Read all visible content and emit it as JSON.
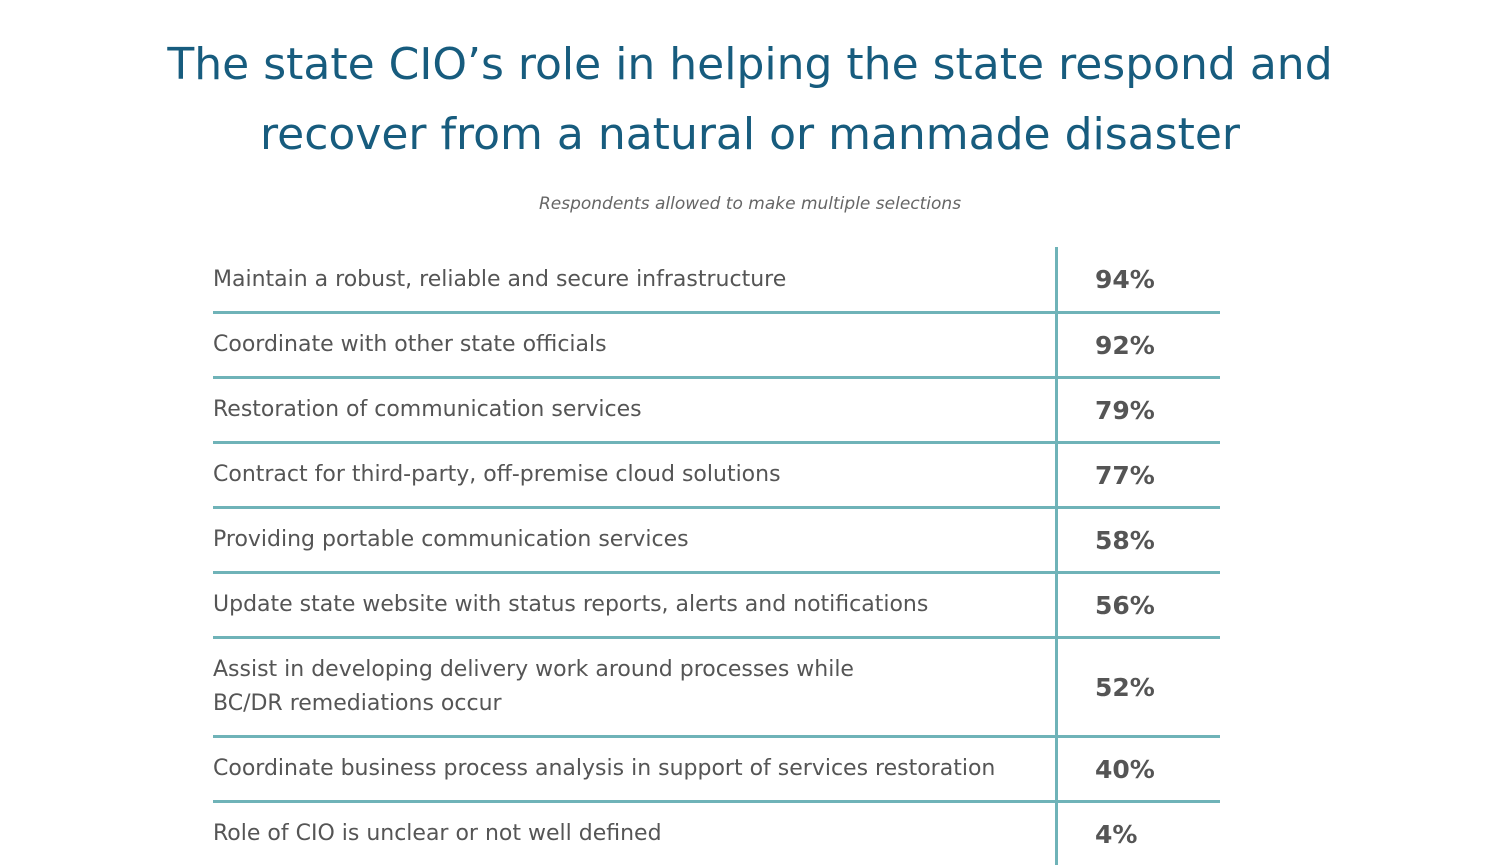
{
  "header": {
    "title": "The state CIO’s role in helping the state respond and recover from a natural or manmade disaster",
    "subtitle": "Respondents allowed to make multiple selections"
  },
  "table": {
    "rows": [
      [
        "Maintain a robust, reliable and secure infrastructure",
        "94%"
      ],
      [
        "Coordinate with other state officials",
        "92%"
      ],
      [
        "Restoration of communication services",
        "79%"
      ],
      [
        "Contract for third-party, off-premise cloud solutions",
        "77%"
      ],
      [
        "Providing portable communication services",
        "58%"
      ],
      [
        "Update state website with status reports, alerts and notifications",
        "56%"
      ],
      [
        "Assist in developing delivery work around processes while BC/DR remediations occur",
        "52%"
      ],
      [
        "Coordinate business process analysis in support of services restoration",
        "40%"
      ],
      [
        "Role of CIO is unclear or not well defined",
        "4%"
      ]
    ]
  }
}
